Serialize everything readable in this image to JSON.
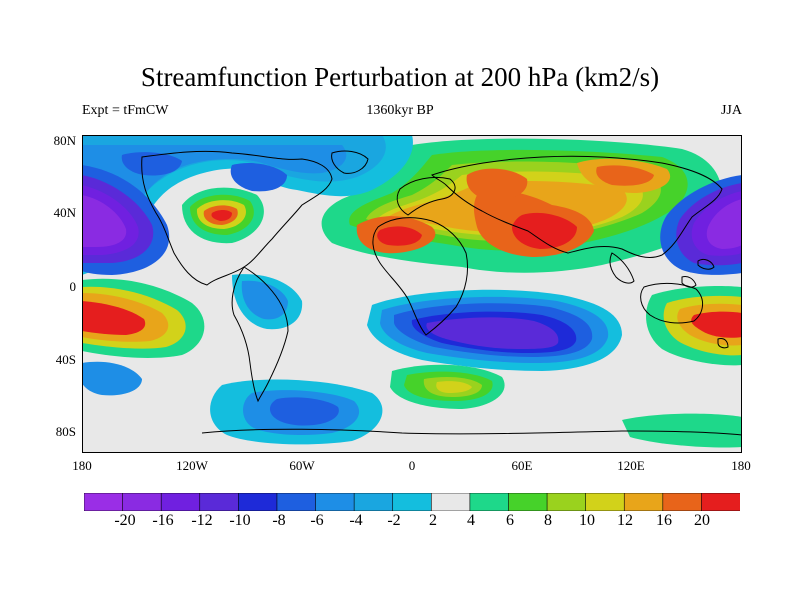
{
  "title": "Streamfunction Perturbation at 200 hPa (km2/s)",
  "subtitle_left": "Expt = tFmCW",
  "subtitle_center": "1360kyr BP",
  "subtitle_right": "JJA",
  "lat_labels": [
    "80N",
    "40N",
    "0",
    "40S",
    "80S"
  ],
  "lon_labels": [
    "180",
    "120W",
    "60W",
    "0",
    "60E",
    "120E",
    "180"
  ],
  "colorbar": {
    "labels": [
      "-20",
      "-16",
      "-12",
      "-10",
      "-8",
      "-6",
      "-4",
      "-2",
      "2",
      "4",
      "6",
      "8",
      "10",
      "12",
      "16",
      "20"
    ],
    "colors": [
      "#8a2be2",
      "#7020e0",
      "#5a2ad8",
      "#1e2ad8",
      "#1e5fe0",
      "#1e8ee6",
      "#1aa6e0",
      "#14bede",
      "#e8e8e8",
      "#1ed88a",
      "#46d22a",
      "#9ad21e",
      "#d2d21a",
      "#e8a51a",
      "#e8641a",
      "#e51e1e"
    ]
  },
  "palette": {
    "neutral": "#e8e8e8",
    "coast": "#000000"
  }
}
